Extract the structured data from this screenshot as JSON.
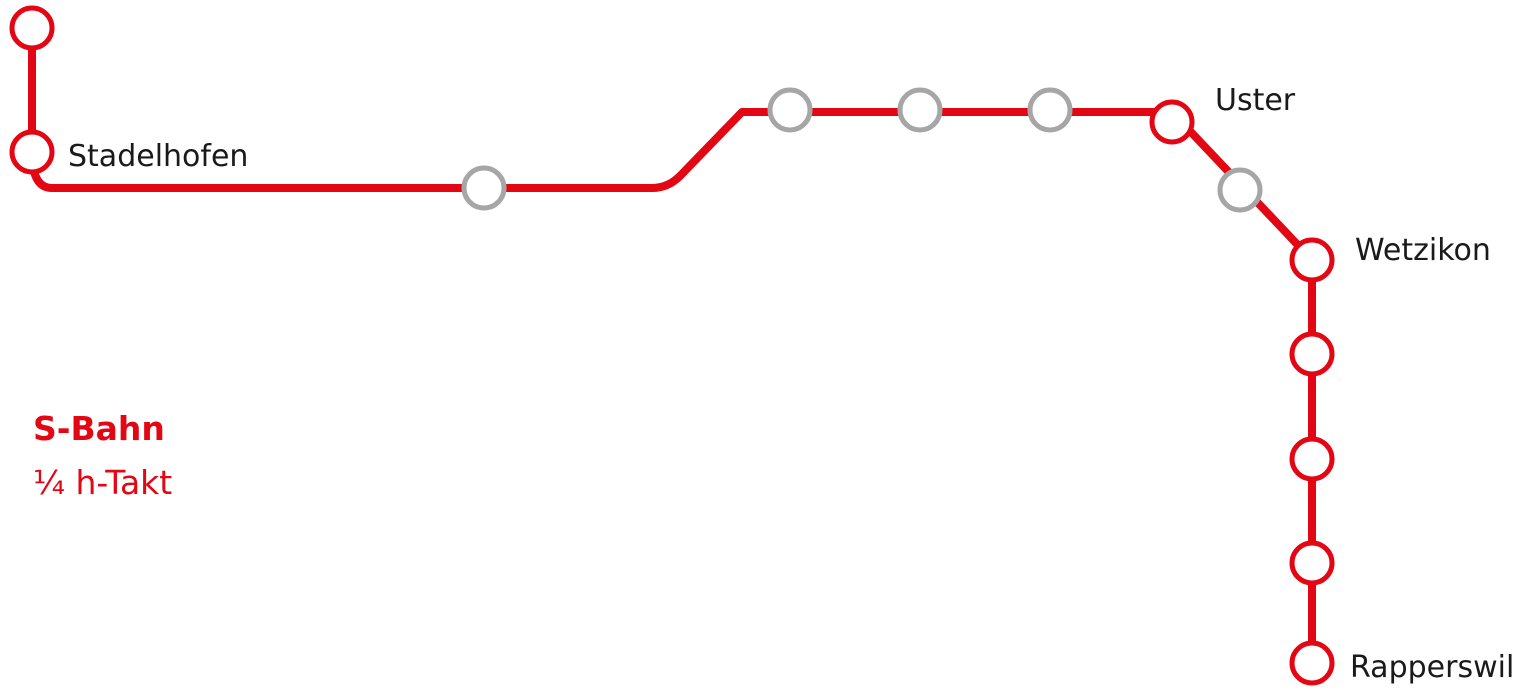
{
  "colors": {
    "line": "#e30613",
    "stop_served": "#e30613",
    "stop_not_served": "#a6a6a6",
    "label_text": "#1a1a1a",
    "background": "#ffffff"
  },
  "line_name": "S-Bahn",
  "frequency": "¼ h-Takt",
  "stations": {
    "stadelhofen": "Stadelhofen",
    "uster": "Uster",
    "wetzikon": "Wetzikon",
    "rapperswil": "Rapperswil"
  },
  "stops": [
    {
      "name": "",
      "served": true
    },
    {
      "name": "Stadelhofen",
      "served": true
    },
    {
      "name": "",
      "served": false
    },
    {
      "name": "",
      "served": false
    },
    {
      "name": "",
      "served": false
    },
    {
      "name": "",
      "served": false
    },
    {
      "name": "Uster",
      "served": true
    },
    {
      "name": "",
      "served": false
    },
    {
      "name": "Wetzikon",
      "served": true
    },
    {
      "name": "",
      "served": true
    },
    {
      "name": "",
      "served": true
    },
    {
      "name": "",
      "served": true
    },
    {
      "name": "Rapperswil",
      "served": true
    }
  ]
}
